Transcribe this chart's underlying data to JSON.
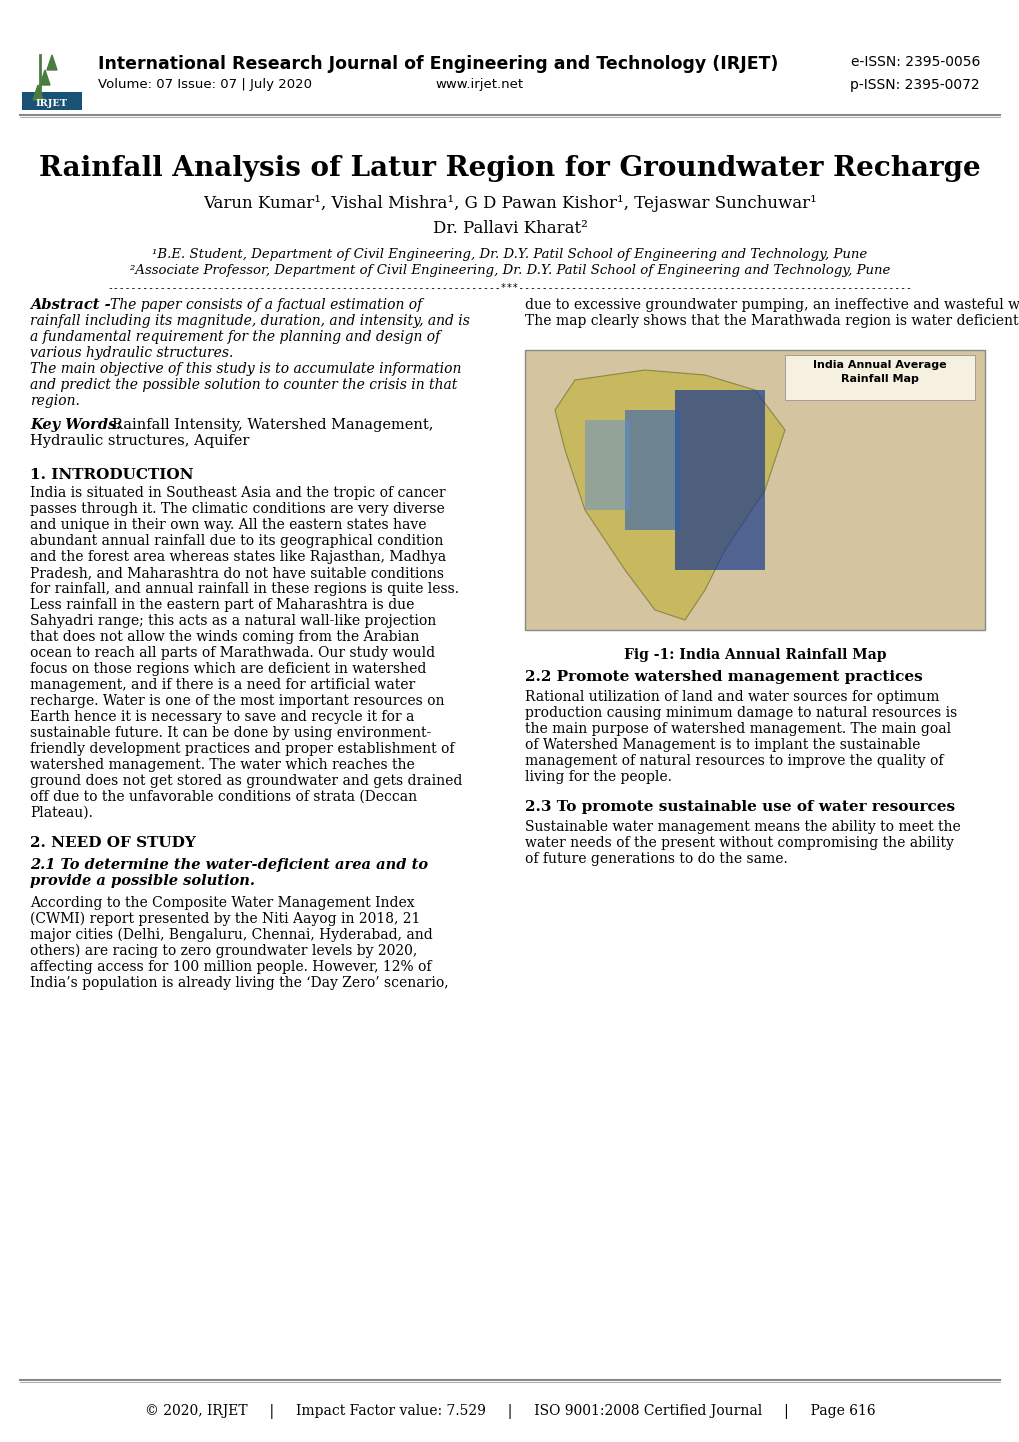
{
  "page_width": 10.2,
  "page_height": 14.42,
  "background_color": "#ffffff",
  "header": {
    "journal_name": "International Research Journal of Engineering and Technology (IRJET)",
    "volume": "Volume: 07 Issue: 07 | July 2020",
    "website": "www.irjet.net",
    "eissn": "e-ISSN: 2395-0056",
    "pissn": "p-ISSN: 2395-0072",
    "logo_color_green": "#4a7c3f",
    "logo_color_blue": "#1a5276",
    "header_line_color": "#888888"
  },
  "title": "Rainfall Analysis of Latur Region for Groundwater Recharge",
  "authors": "Varun Kumar¹, Vishal Mishra¹, G D Pawan Kishor¹, Tejaswar Sunchuwar¹",
  "advisor": "Dr. Pallavi Kharat²",
  "affiliations": "¹B.E. Student, Department of Civil Engineering, Dr. D.Y. Patil School of Engineering and Technology, Pune\n²Associate Professor, Department of Civil Engineering, Dr. D.Y. Patil School of Engineering and Technology, Pune",
  "separator_line": "-------------------------------------------------------------------***-------------------------------------------------------------------",
  "abstract_bold": "Abstract -",
  "abstract_text": " The paper consists of a factual estimation of rainfall including its magnitude, duration, and intensity, and is a fundamental requirement for the planning and design of various hydraulic structures.\nThe main objective of this study is to accumulate information and predict the possible solution to counter the crisis in that region.",
  "abstract_right": "due to excessive groundwater pumping, an ineffective and wasteful water management system, and years of insufficient rains.\nThe map clearly shows that the Marathwada region is water deficient, and our prime focus will be on that region especially Latur district.",
  "keywords_bold": "Key Words:",
  "keywords_text": "  Rainfall Intensity, Watershed Management, Hydraulic structures, Aquifer",
  "section1_title": "1. INTRODUCTION",
  "section1_text": "India is situated in Southeast Asia and the tropic of cancer passes through it. The climatic conditions are very diverse and unique in their own way. All the eastern states have abundant annual rainfall due to its geographical condition and the forest area whereas states like Rajasthan, Madhya Pradesh, and Maharashtra do not have suitable conditions for rainfall, and annual rainfall in these regions is quite less. Less rainfall in the eastern part of Maharashtra is due Sahyadri range; this acts as a natural wall-like projection that does not allow the winds coming from the Arabian ocean to reach all parts of Marathwada. Our study would focus on those regions which are deficient in watershed management, and if there is a need for artificial water recharge. Water is one of the most important resources on Earth hence it is necessary to save and recycle it for a sustainable future. It can be done by using environment-friendly development practices and proper establishment of watershed management. The water which reaches the ground does not get stored as groundwater and gets drained off due to the unfavorable conditions of strata (Deccan Plateau).",
  "section2_title": "2. NEED OF STUDY",
  "section2_sub1_title": "2.1 To determine the water-deficient area and to provide a possible solution.",
  "section2_sub1_text": "According to the Composite Water Management Index (CWMI) report presented by the Niti Aayog in 2018, 21 major cities (Delhi, Bengaluru, Chennai, Hyderabad, and others) are racing to zero groundwater levels by 2020, affecting access for 100 million people. However, 12% of India’s population is already living the ‘Day Zero’ scenario,",
  "section2_sub2_title": "2.2 Promote watershed management practices",
  "section2_sub2_text": "Rational utilization of land and water sources for optimum production causing minimum damage to natural resources is the main purpose of watershed management. The main goal of Watershed Management is to implant the sustainable management of natural resources to improve the quality of living for the people.",
  "section2_sub3_title": "2.3 To promote sustainable use of water resources",
  "section2_sub3_text": "Sustainable water management means the ability to meet the water needs of the present without compromising the ability of future generations to do the same.",
  "fig1_caption": "Fig -1: India Annual Rainfall Map",
  "fig1_title_on_map": "India Annual Average\nRainfall Map",
  "footer_line_color": "#888888",
  "footer_text": "© 2020, IRJET     |     Impact Factor value: 7.529     |     ISO 9001:2008 Certified Journal     |     Page 616",
  "text_color": "#000000",
  "accent_color": "#ff6600"
}
